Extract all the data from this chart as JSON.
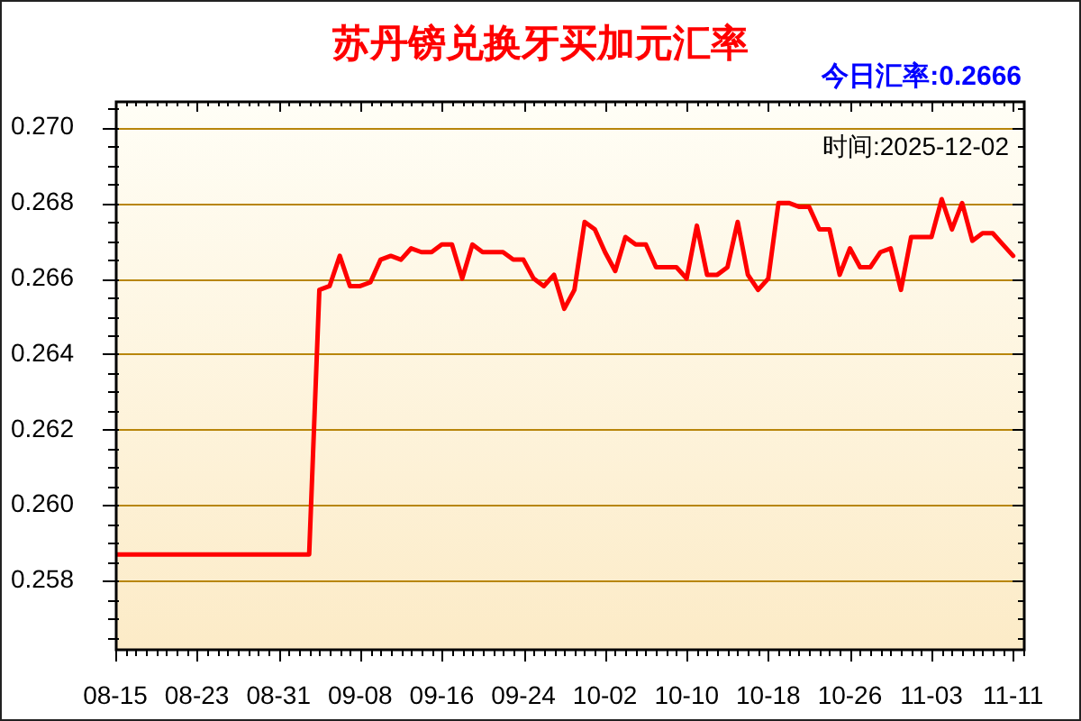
{
  "chart_data": {
    "type": "line",
    "title": "苏丹镑兑换牙买加元汇率",
    "subtitle": "今日汇率:0.2666",
    "annotations": [
      "时间:2025-12-02"
    ],
    "x": [
      "--08-15",
      "--09-03",
      "--09-04",
      "--09-05",
      "--09-06",
      "--09-07",
      "--09-08",
      "--09-09",
      "--09-10",
      "--09-11",
      "--09-12",
      "--09-13",
      "--09-14",
      "--09-15",
      "--09-16",
      "--09-17",
      "--09-18",
      "--09-19",
      "--09-20",
      "--09-21",
      "--09-22",
      "--09-23",
      "--09-24",
      "--09-25",
      "--09-26",
      "--09-27",
      "--09-28",
      "--09-29",
      "--09-30",
      "--10-01",
      "--10-02",
      "--10-03",
      "--10-04",
      "--10-05",
      "--10-06",
      "--10-07",
      "--10-08",
      "--10-09",
      "--10-10",
      "--10-11",
      "--10-12",
      "--10-13",
      "--10-14",
      "--10-15",
      "--10-16",
      "--10-17",
      "--10-18",
      "--10-19",
      "--10-20",
      "--10-21",
      "--10-22",
      "--10-23",
      "--10-24",
      "--10-25",
      "--10-26",
      "--10-27",
      "--10-28",
      "--10-29",
      "--10-30",
      "--10-31",
      "--11-01",
      "--11-02",
      "--11-03",
      "--11-04",
      "--11-05",
      "--11-06",
      "--11-07",
      "--11-08",
      "--11-09",
      "--11-10",
      "--11-11"
    ],
    "values": [
      0.2587,
      0.2587,
      0.2657,
      0.2658,
      0.2666,
      0.2658,
      0.2658,
      0.2659,
      0.2665,
      0.2666,
      0.2665,
      0.2668,
      0.2667,
      0.2667,
      0.2669,
      0.2669,
      0.266,
      0.2669,
      0.2667,
      0.2667,
      0.2667,
      0.2665,
      0.2665,
      0.266,
      0.2658,
      0.2661,
      0.2652,
      0.2657,
      0.2675,
      0.2673,
      0.2667,
      0.2662,
      0.2671,
      0.2669,
      0.2669,
      0.2663,
      0.2663,
      0.2663,
      0.266,
      0.2674,
      0.2661,
      0.2661,
      0.2663,
      0.2675,
      0.2661,
      0.2657,
      0.266,
      0.268,
      0.268,
      0.2679,
      0.2679,
      0.2673,
      0.2673,
      0.2661,
      0.2668,
      0.2663,
      0.2663,
      0.2667,
      0.2668,
      0.2657,
      0.2671,
      0.2671,
      0.2671,
      0.2681,
      0.2673,
      0.268,
      0.267,
      0.2672,
      0.2672,
      0.2669,
      0.2666
    ],
    "color": "#ff0000",
    "xlim": [
      "--08-15",
      "--11-12"
    ],
    "ylim": [
      0.2562,
      0.2707
    ],
    "xticks": [
      {
        "value": "--08-15",
        "label": "08-15"
      },
      {
        "value": "--08-16",
        "label": null
      },
      {
        "value": "--08-17",
        "label": null
      },
      {
        "value": "--08-18",
        "label": null
      },
      {
        "value": "--08-19",
        "label": null
      },
      {
        "value": "--08-20",
        "label": null
      },
      {
        "value": "--08-21",
        "label": null
      },
      {
        "value": "--08-22",
        "label": null
      },
      {
        "value": "--08-23",
        "label": "08-23"
      },
      {
        "value": "--08-24",
        "label": null
      },
      {
        "value": "--08-25",
        "label": null
      },
      {
        "value": "--08-26",
        "label": null
      },
      {
        "value": "--08-27",
        "label": null
      },
      {
        "value": "--08-28",
        "label": null
      },
      {
        "value": "--08-29",
        "label": null
      },
      {
        "value": "--08-30",
        "label": null
      },
      {
        "value": "--08-31",
        "label": "08-31"
      },
      {
        "value": "--09-01",
        "label": null
      },
      {
        "value": "--09-02",
        "label": null
      },
      {
        "value": "--09-03",
        "label": null
      },
      {
        "value": "--09-04",
        "label": null
      },
      {
        "value": "--09-05",
        "label": null
      },
      {
        "value": "--09-06",
        "label": null
      },
      {
        "value": "--09-07",
        "label": null
      },
      {
        "value": "--09-08",
        "label": "09-08"
      },
      {
        "value": "--09-09",
        "label": null
      },
      {
        "value": "--09-10",
        "label": null
      },
      {
        "value": "--09-11",
        "label": null
      },
      {
        "value": "--09-12",
        "label": null
      },
      {
        "value": "--09-13",
        "label": null
      },
      {
        "value": "--09-14",
        "label": null
      },
      {
        "value": "--09-15",
        "label": null
      },
      {
        "value": "--09-16",
        "label": "09-16"
      },
      {
        "value": "--09-17",
        "label": null
      },
      {
        "value": "--09-18",
        "label": null
      },
      {
        "value": "--09-19",
        "label": null
      },
      {
        "value": "--09-20",
        "label": null
      },
      {
        "value": "--09-21",
        "label": null
      },
      {
        "value": "--09-22",
        "label": null
      },
      {
        "value": "--09-23",
        "label": null
      },
      {
        "value": "--09-24",
        "label": "09-24"
      },
      {
        "value": "--09-25",
        "label": null
      },
      {
        "value": "--09-26",
        "label": null
      },
      {
        "value": "--09-27",
        "label": null
      },
      {
        "value": "--09-28",
        "label": null
      },
      {
        "value": "--09-29",
        "label": null
      },
      {
        "value": "--09-30",
        "label": null
      },
      {
        "value": "--10-01",
        "label": null
      },
      {
        "value": "--10-02",
        "label": "10-02"
      },
      {
        "value": "--10-03",
        "label": null
      },
      {
        "value": "--10-04",
        "label": null
      },
      {
        "value": "--10-05",
        "label": null
      },
      {
        "value": "--10-06",
        "label": null
      },
      {
        "value": "--10-07",
        "label": null
      },
      {
        "value": "--10-08",
        "label": null
      },
      {
        "value": "--10-09",
        "label": null
      },
      {
        "value": "--10-10",
        "label": "10-10"
      },
      {
        "value": "--10-11",
        "label": null
      },
      {
        "value": "--10-12",
        "label": null
      },
      {
        "value": "--10-13",
        "label": null
      },
      {
        "value": "--10-14",
        "label": null
      },
      {
        "value": "--10-15",
        "label": null
      },
      {
        "value": "--10-16",
        "label": null
      },
      {
        "value": "--10-17",
        "label": null
      },
      {
        "value": "--10-18",
        "label": "10-18"
      },
      {
        "value": "--10-19",
        "label": null
      },
      {
        "value": "--10-20",
        "label": null
      },
      {
        "value": "--10-21",
        "label": null
      },
      {
        "value": "--10-22",
        "label": null
      },
      {
        "value": "--10-23",
        "label": null
      },
      {
        "value": "--10-24",
        "label": null
      },
      {
        "value": "--10-25",
        "label": null
      },
      {
        "value": "--10-26",
        "label": "10-26"
      },
      {
        "value": "--10-27",
        "label": null
      },
      {
        "value": "--10-28",
        "label": null
      },
      {
        "value": "--10-29",
        "label": null
      },
      {
        "value": "--10-30",
        "label": null
      },
      {
        "value": "--10-31",
        "label": null
      },
      {
        "value": "--11-01",
        "label": null
      },
      {
        "value": "--11-02",
        "label": null
      },
      {
        "value": "--11-03",
        "label": "11-03"
      },
      {
        "value": "--11-04",
        "label": null
      },
      {
        "value": "--11-05",
        "label": null
      },
      {
        "value": "--11-06",
        "label": null
      },
      {
        "value": "--11-07",
        "label": null
      },
      {
        "value": "--11-08",
        "label": null
      },
      {
        "value": "--11-09",
        "label": null
      },
      {
        "value": "--11-10",
        "label": null
      },
      {
        "value": "--11-11",
        "label": "11-11"
      },
      {
        "value": "--11-12",
        "label": null
      }
    ],
    "yticks": [
      {
        "value": 0.2565,
        "label": null
      },
      {
        "value": 0.257,
        "label": null
      },
      {
        "value": 0.2575,
        "label": null
      },
      {
        "value": 0.258,
        "label": "0.258"
      },
      {
        "value": 0.2585,
        "label": null
      },
      {
        "value": 0.259,
        "label": null
      },
      {
        "value": 0.2595,
        "label": null
      },
      {
        "value": 0.26,
        "label": "0.260"
      },
      {
        "value": 0.2605,
        "label": null
      },
      {
        "value": 0.261,
        "label": null
      },
      {
        "value": 0.2615,
        "label": null
      },
      {
        "value": 0.262,
        "label": "0.262"
      },
      {
        "value": 0.2625,
        "label": null
      },
      {
        "value": 0.263,
        "label": null
      },
      {
        "value": 0.2635,
        "label": null
      },
      {
        "value": 0.264,
        "label": "0.264"
      },
      {
        "value": 0.2645,
        "label": null
      },
      {
        "value": 0.265,
        "label": null
      },
      {
        "value": 0.2655,
        "label": null
      },
      {
        "value": 0.266,
        "label": "0.266"
      },
      {
        "value": 0.2665,
        "label": null
      },
      {
        "value": 0.267,
        "label": null
      },
      {
        "value": 0.2675,
        "label": null
      },
      {
        "value": 0.268,
        "label": "0.268"
      },
      {
        "value": 0.2685,
        "label": null
      },
      {
        "value": 0.269,
        "label": null
      },
      {
        "value": 0.2695,
        "label": null
      },
      {
        "value": 0.27,
        "label": "0.270"
      },
      {
        "value": 0.2705,
        "label": null
      }
    ],
    "grid": "y"
  }
}
